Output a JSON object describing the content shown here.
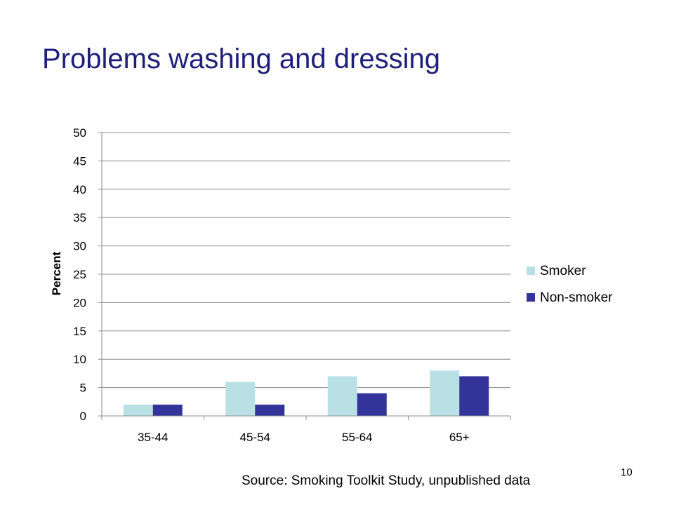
{
  "slide": {
    "title": "Problems washing and dressing",
    "source": "Source: Smoking Toolkit Study, unpublished data",
    "page_number": "10"
  },
  "chart_data": {
    "type": "bar",
    "categories": [
      "35-44",
      "45-54",
      "55-64",
      "65+"
    ],
    "series": [
      {
        "name": "Smoker",
        "values": [
          2,
          6,
          7,
          8
        ],
        "color": "#b9e0e4"
      },
      {
        "name": "Non-smoker",
        "values": [
          2,
          2,
          4,
          7
        ],
        "color": "#333399"
      }
    ],
    "ylabel": "Percent",
    "xlabel": "",
    "ylim": [
      0,
      50
    ],
    "yticks": [
      0,
      5,
      10,
      15,
      20,
      25,
      30,
      35,
      40,
      45,
      50
    ],
    "grid": true,
    "legend": "right"
  }
}
